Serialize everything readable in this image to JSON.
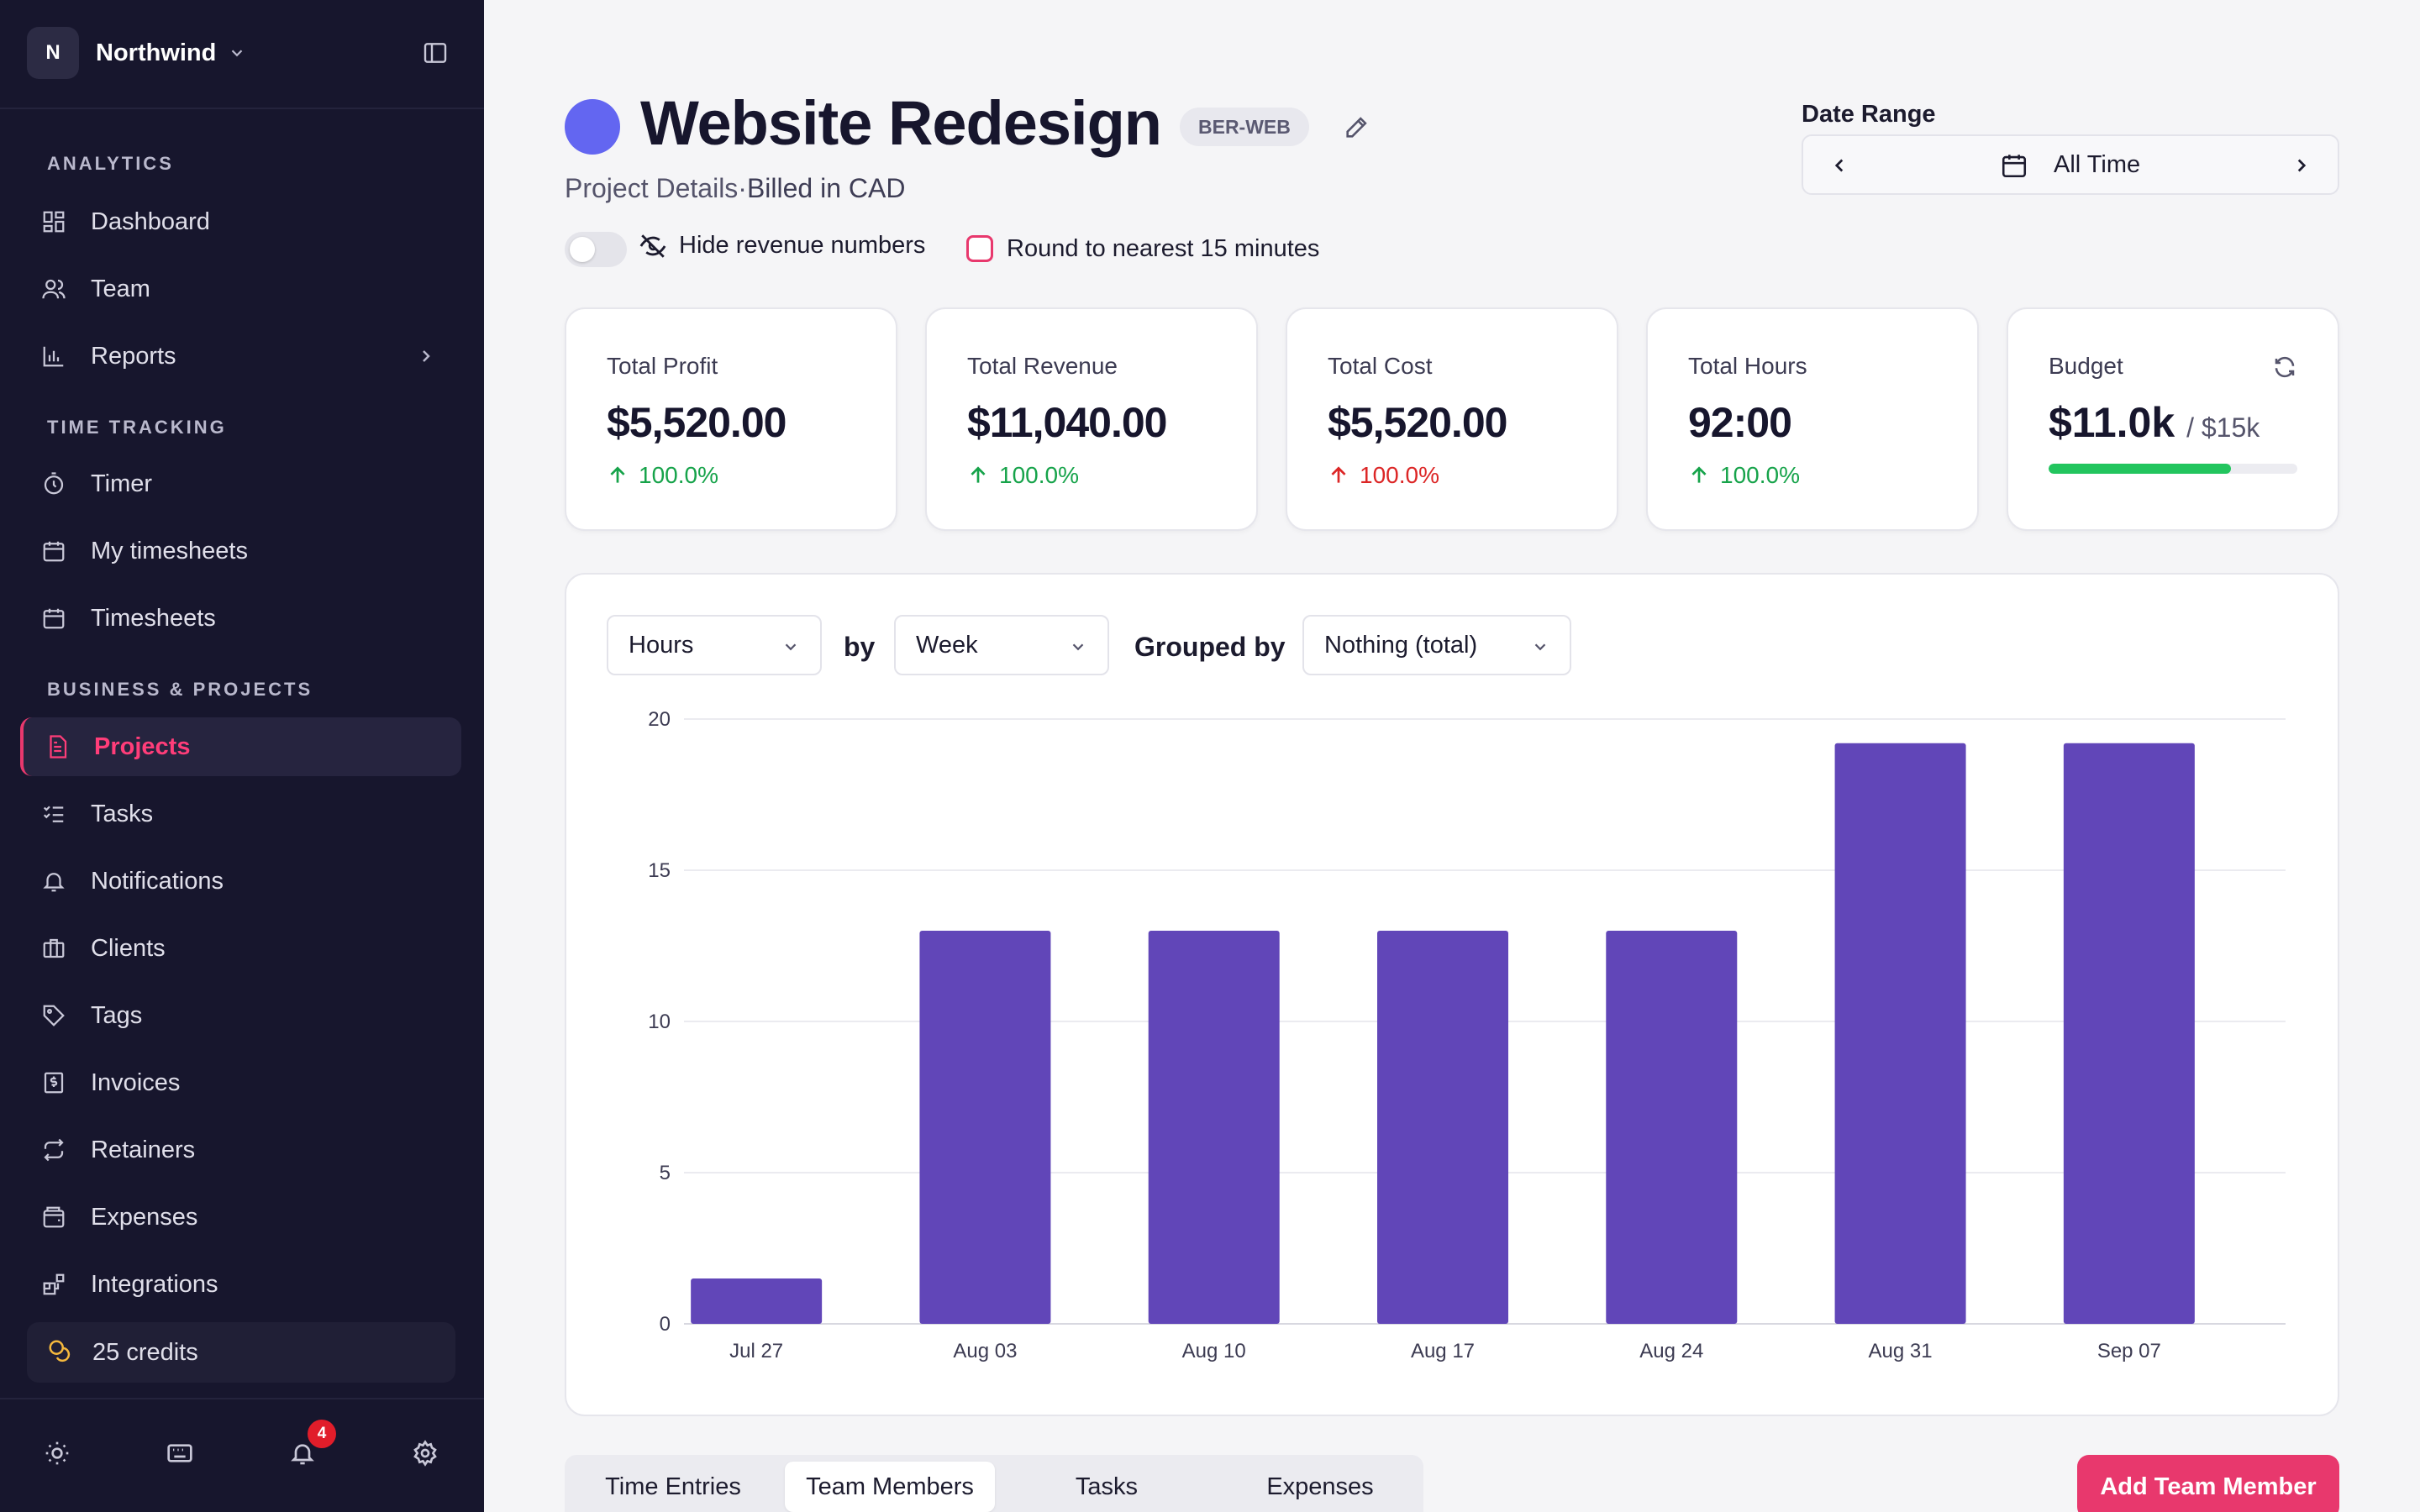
{
  "workspace": {
    "initial": "N",
    "name": "Northwind"
  },
  "sidebar": {
    "sections": [
      {
        "label": "ANALYTICS"
      },
      {
        "label": "TIME TRACKING"
      },
      {
        "label": "BUSINESS & PROJECTS"
      }
    ],
    "items": [
      {
        "label": "Dashboard",
        "icon": "dashboard-icon"
      },
      {
        "label": "Team",
        "icon": "team-icon"
      },
      {
        "label": "Reports",
        "icon": "reports-icon"
      },
      {
        "label": "Timer",
        "icon": "timer-icon"
      },
      {
        "label": "My timesheets",
        "icon": "calendar-icon"
      },
      {
        "label": "Timesheets",
        "icon": "calendar-icon"
      },
      {
        "label": "Projects",
        "icon": "document-icon"
      },
      {
        "label": "Tasks",
        "icon": "checklist-icon"
      },
      {
        "label": "Notifications",
        "icon": "bell-icon"
      },
      {
        "label": "Clients",
        "icon": "briefcase-icon"
      },
      {
        "label": "Tags",
        "icon": "tag-icon"
      },
      {
        "label": "Invoices",
        "icon": "invoice-icon"
      },
      {
        "label": "Retainers",
        "icon": "repeat-icon"
      },
      {
        "label": "Expenses",
        "icon": "wallet-icon"
      },
      {
        "label": "Integrations",
        "icon": "integrations-icon"
      }
    ],
    "credits": "25 credits",
    "notification_count": "4",
    "accent": "#e8386d"
  },
  "project": {
    "title": "Website Redesign",
    "code": "BER-WEB",
    "subtitle_prefix": "Project Details",
    "subtitle_sep": "·",
    "subtitle_billing": "Billed in CAD",
    "color": "#6366f1",
    "hide_revenue_label": "Hide revenue numbers",
    "round_label": "Round to nearest 15 minutes"
  },
  "date_range": {
    "label": "Date Range",
    "value": "All Time"
  },
  "kpis": [
    {
      "title": "Total Profit",
      "value": "$5,520.00",
      "change": "100.0%",
      "direction": "up"
    },
    {
      "title": "Total Revenue",
      "value": "$11,040.00",
      "change": "100.0%",
      "direction": "up"
    },
    {
      "title": "Total Cost",
      "value": "$5,520.00",
      "change": "100.0%",
      "direction": "down"
    },
    {
      "title": "Total Hours",
      "value": "92:00",
      "change": "100.0%",
      "direction": "up"
    }
  ],
  "budget": {
    "title": "Budget",
    "value": "$11.0k",
    "of": "/ $15k",
    "progress": 0.733
  },
  "chart_controls": {
    "metric": "Hours",
    "by_label": "by",
    "period": "Week",
    "grouped_label": "Grouped by",
    "grouping": "Nothing (total)"
  },
  "chart_data": {
    "type": "bar",
    "categories": [
      "Jul 27",
      "Aug 03",
      "Aug 10",
      "Aug 17",
      "Aug 24",
      "Aug 31",
      "Sep 07"
    ],
    "values": [
      1.5,
      13,
      13,
      13,
      13,
      19.2,
      19.2
    ],
    "yticks": [
      0,
      5,
      10,
      15,
      20
    ],
    "ylim": [
      0,
      20
    ],
    "color": "#6146b8",
    "grid": true
  },
  "tabs": [
    {
      "label": "Time Entries",
      "active": false
    },
    {
      "label": "Team Members",
      "active": true
    },
    {
      "label": "Tasks",
      "active": false
    },
    {
      "label": "Expenses",
      "active": false
    }
  ],
  "add_button": "Add Team Member"
}
